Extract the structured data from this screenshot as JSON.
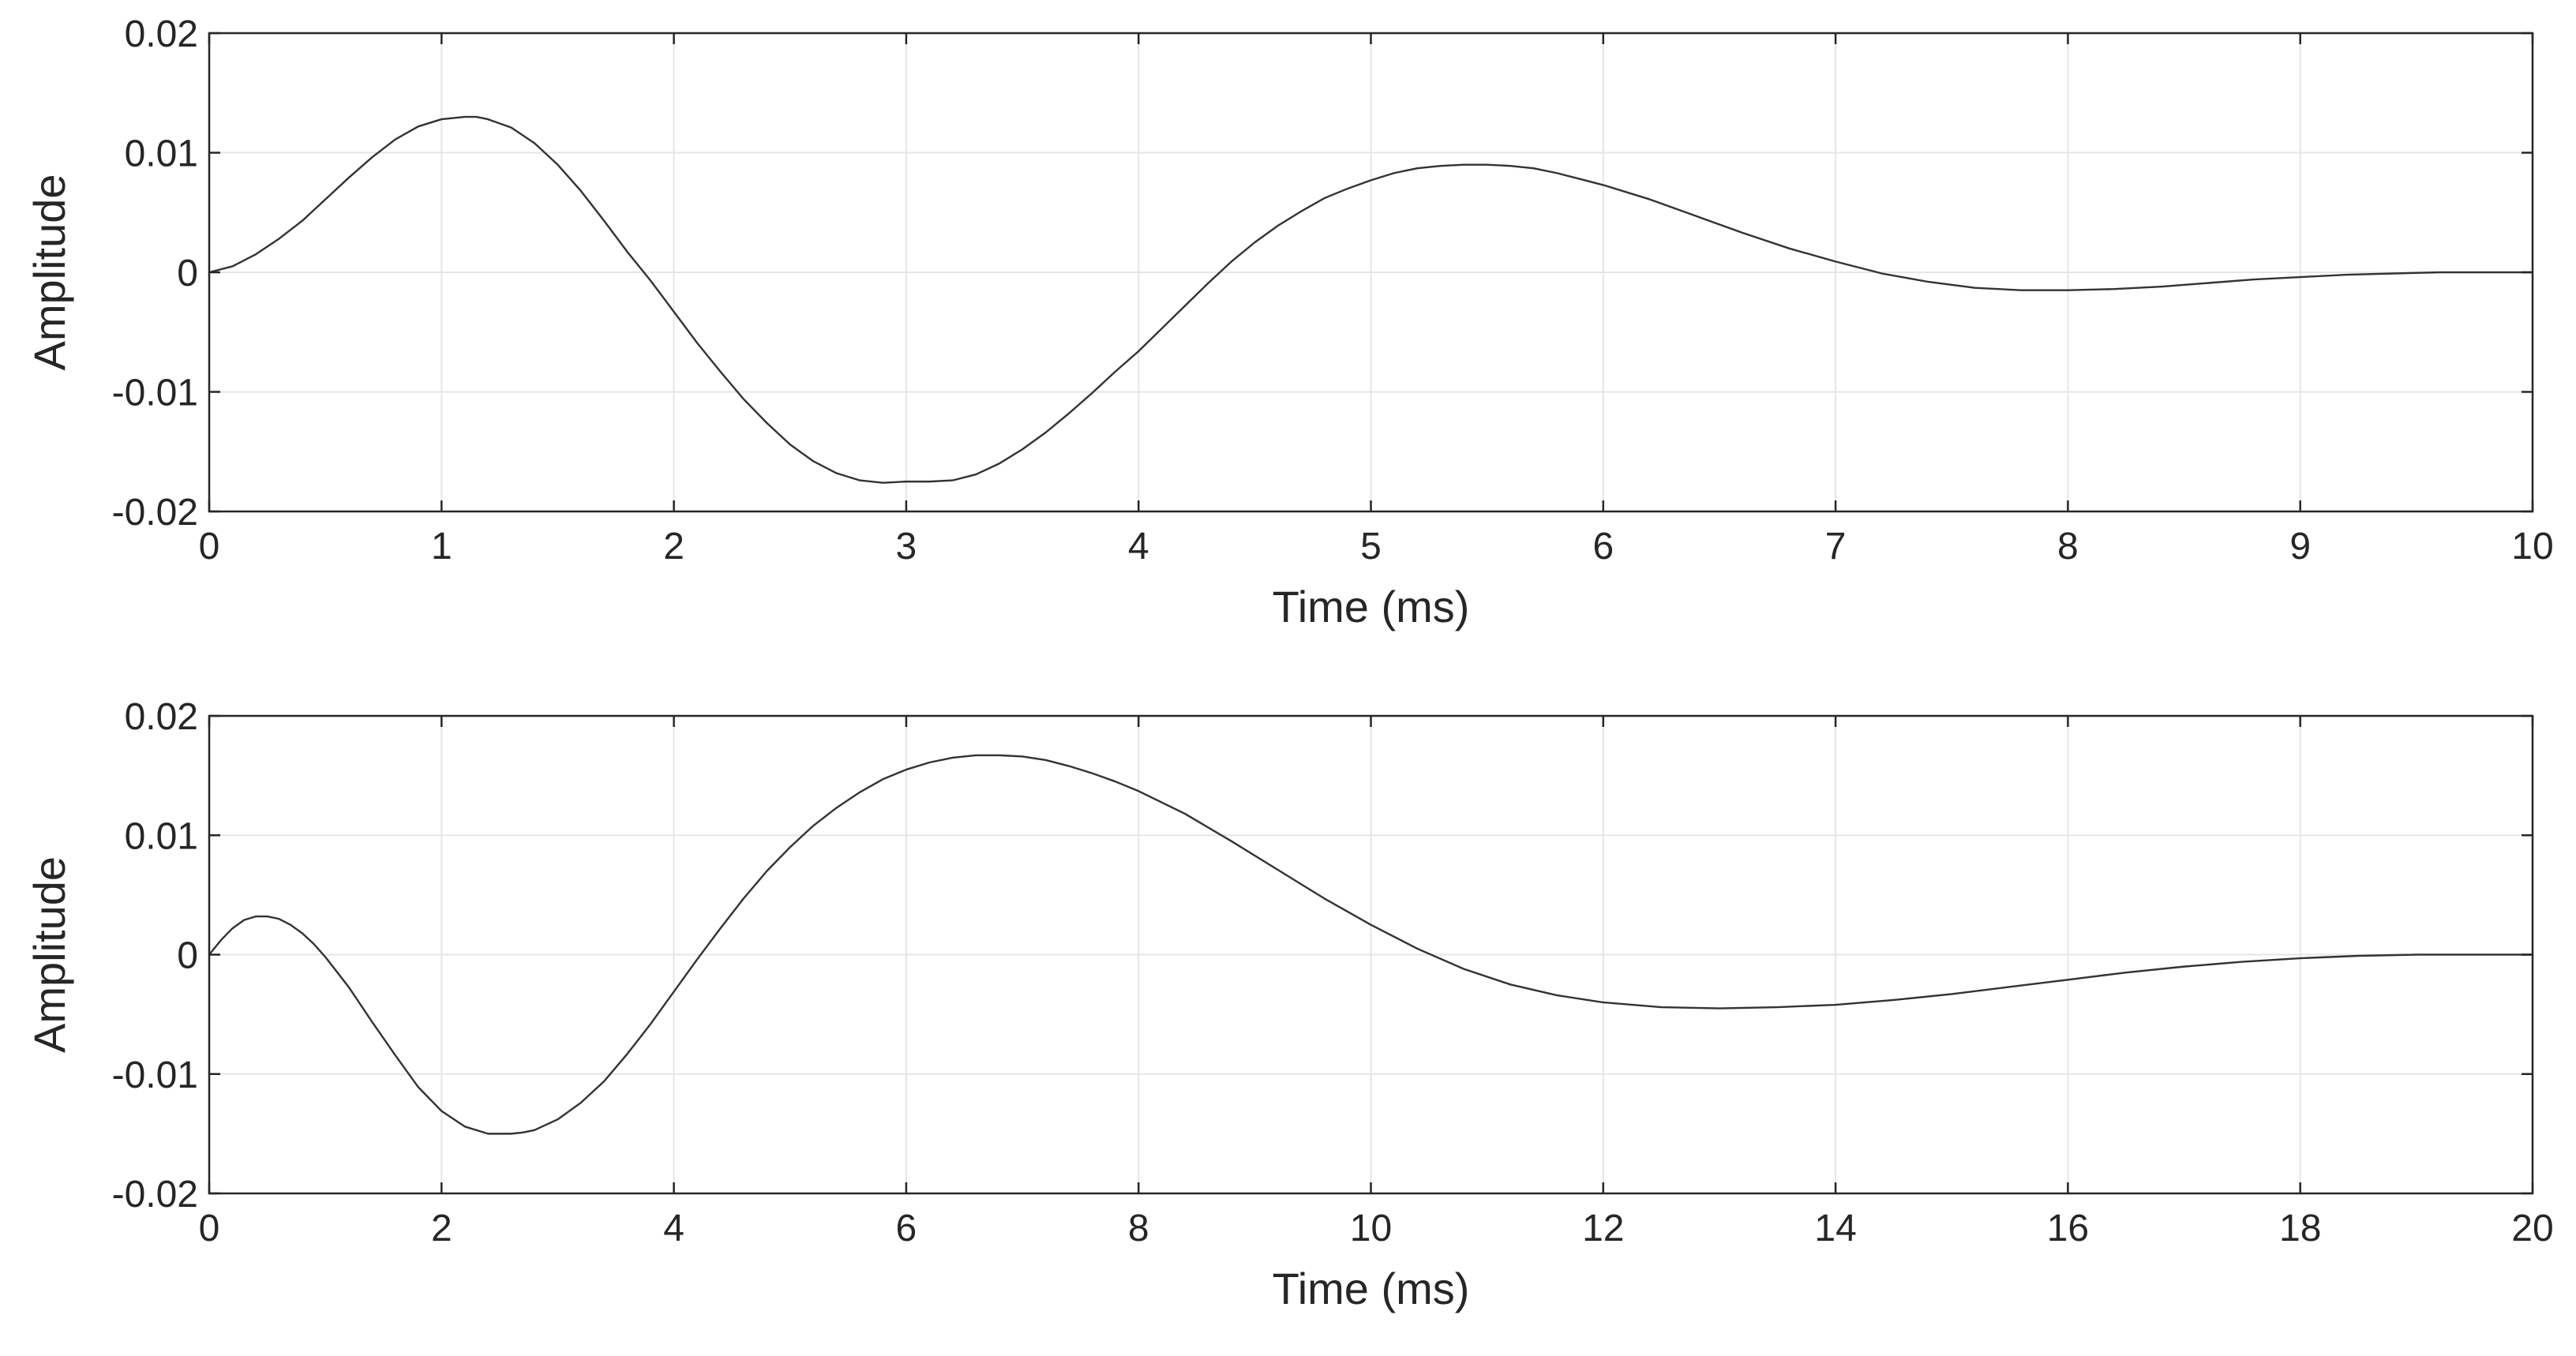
{
  "colors": {
    "background": "#ffffff",
    "axes_border": "#262626",
    "grid": "#e6e6e6",
    "line": "#333333",
    "text": "#262626"
  },
  "chart_data": [
    {
      "type": "line",
      "xlabel": "Time (ms)",
      "ylabel": "Amplitude",
      "xlim": [
        0,
        10
      ],
      "ylim": [
        -0.02,
        0.02
      ],
      "xticks": [
        0,
        1,
        2,
        3,
        4,
        5,
        6,
        7,
        8,
        9,
        10
      ],
      "yticks": [
        0.02,
        0.01,
        0,
        -0.01,
        -0.02
      ],
      "xtick_labels": [
        "0",
        "1",
        "2",
        "3",
        "4",
        "5",
        "6",
        "7",
        "8",
        "9",
        "10"
      ],
      "ytick_labels": [
        "0.02",
        "0.01",
        "0",
        "-0.01",
        "-0.02"
      ],
      "grid": true,
      "series": [
        {
          "x": [
            0,
            0.1,
            0.2,
            0.3,
            0.4,
            0.5,
            0.6,
            0.7,
            0.8,
            0.9,
            1.0,
            1.1,
            1.15,
            1.2,
            1.3,
            1.4,
            1.5,
            1.6,
            1.7,
            1.8,
            1.9,
            2.0,
            2.1,
            2.2,
            2.3,
            2.4,
            2.5,
            2.6,
            2.7,
            2.8,
            2.9,
            3.0,
            3.1,
            3.2,
            3.3,
            3.4,
            3.5,
            3.6,
            3.7,
            3.8,
            3.9,
            4.0,
            4.1,
            4.2,
            4.3,
            4.4,
            4.5,
            4.6,
            4.7,
            4.8,
            4.9,
            5.0,
            5.1,
            5.2,
            5.3,
            5.4,
            5.5,
            5.6,
            5.7,
            5.8,
            5.9,
            6.0,
            6.2,
            6.4,
            6.6,
            6.8,
            7.0,
            7.2,
            7.4,
            7.6,
            7.8,
            8.0,
            8.2,
            8.4,
            8.6,
            8.8,
            9.0,
            9.2,
            9.4,
            9.6,
            9.8,
            10.0
          ],
          "y": [
            0,
            0.0005,
            0.0015,
            0.0028,
            0.0043,
            0.0061,
            0.0079,
            0.0096,
            0.0111,
            0.0122,
            0.0128,
            0.013,
            0.013,
            0.0128,
            0.0121,
            0.0108,
            0.009,
            0.0068,
            0.0043,
            0.0017,
            -0.0007,
            -0.0033,
            -0.0059,
            -0.0083,
            -0.0106,
            -0.0126,
            -0.0144,
            -0.0158,
            -0.0168,
            -0.0174,
            -0.0176,
            -0.0175,
            -0.0175,
            -0.0174,
            -0.0169,
            -0.016,
            -0.0148,
            -0.0134,
            -0.0118,
            -0.0101,
            -0.0083,
            -0.0066,
            -0.0047,
            -0.0028,
            -0.0009,
            0.0009,
            0.0025,
            0.0039,
            0.0051,
            0.0062,
            0.007,
            0.0077,
            0.0083,
            0.0087,
            0.0089,
            0.009,
            0.009,
            0.0089,
            0.0087,
            0.0083,
            0.0078,
            0.0073,
            0.0061,
            0.0047,
            0.0033,
            0.002,
            0.0009,
            -0.0001,
            -0.0008,
            -0.0013,
            -0.0015,
            -0.0015,
            -0.0014,
            -0.0012,
            -0.0009,
            -0.0006,
            -0.0004,
            -0.0002,
            -0.0001,
            0,
            0,
            0
          ]
        }
      ]
    },
    {
      "type": "line",
      "xlabel": "Time (ms)",
      "ylabel": "Amplitude",
      "xlim": [
        0,
        20
      ],
      "ylim": [
        -0.02,
        0.02
      ],
      "xticks": [
        0,
        2,
        4,
        6,
        8,
        10,
        12,
        14,
        16,
        18,
        20
      ],
      "yticks": [
        0.02,
        0.01,
        0,
        -0.01,
        -0.02
      ],
      "xtick_labels": [
        "0",
        "2",
        "4",
        "6",
        "8",
        "10",
        "12",
        "14",
        "16",
        "18",
        "20"
      ],
      "ytick_labels": [
        "0.02",
        "0.01",
        "0",
        "-0.01",
        "-0.02"
      ],
      "grid": true,
      "series": [
        {
          "x": [
            0,
            0.1,
            0.2,
            0.3,
            0.4,
            0.5,
            0.6,
            0.7,
            0.8,
            0.9,
            1.0,
            1.2,
            1.4,
            1.6,
            1.8,
            2.0,
            2.2,
            2.4,
            2.6,
            2.7,
            2.8,
            3.0,
            3.2,
            3.4,
            3.6,
            3.8,
            4.0,
            4.2,
            4.4,
            4.6,
            4.8,
            5.0,
            5.2,
            5.4,
            5.6,
            5.8,
            6.0,
            6.2,
            6.4,
            6.6,
            6.8,
            7.0,
            7.2,
            7.4,
            7.6,
            7.8,
            8.0,
            8.4,
            8.8,
            9.2,
            9.6,
            10.0,
            10.4,
            10.8,
            11.2,
            11.6,
            12.0,
            12.5,
            13.0,
            13.5,
            14.0,
            14.5,
            15.0,
            15.5,
            16.0,
            16.5,
            17.0,
            17.5,
            18.0,
            18.5,
            19.0,
            19.5,
            20.0
          ],
          "y": [
            0,
            0.0012,
            0.0022,
            0.0029,
            0.0032,
            0.0032,
            0.003,
            0.0025,
            0.0018,
            0.0009,
            -0.0002,
            -0.0027,
            -0.0056,
            -0.0084,
            -0.0111,
            -0.0131,
            -0.0144,
            -0.015,
            -0.015,
            -0.0149,
            -0.0147,
            -0.0138,
            -0.0124,
            -0.0106,
            -0.0083,
            -0.0058,
            -0.0031,
            -0.0004,
            0.0022,
            0.0047,
            0.007,
            0.009,
            0.0108,
            0.0123,
            0.0136,
            0.0147,
            0.0155,
            0.0161,
            0.0165,
            0.0167,
            0.0167,
            0.0166,
            0.0163,
            0.0158,
            0.0152,
            0.0145,
            0.0137,
            0.0118,
            0.0095,
            0.0071,
            0.0047,
            0.0025,
            0.0005,
            -0.0012,
            -0.0025,
            -0.0034,
            -0.004,
            -0.0044,
            -0.0045,
            -0.0044,
            -0.0042,
            -0.0038,
            -0.0033,
            -0.0027,
            -0.0021,
            -0.0015,
            -0.001,
            -0.0006,
            -0.0003,
            -0.0001,
            0,
            0,
            0
          ]
        }
      ]
    }
  ]
}
